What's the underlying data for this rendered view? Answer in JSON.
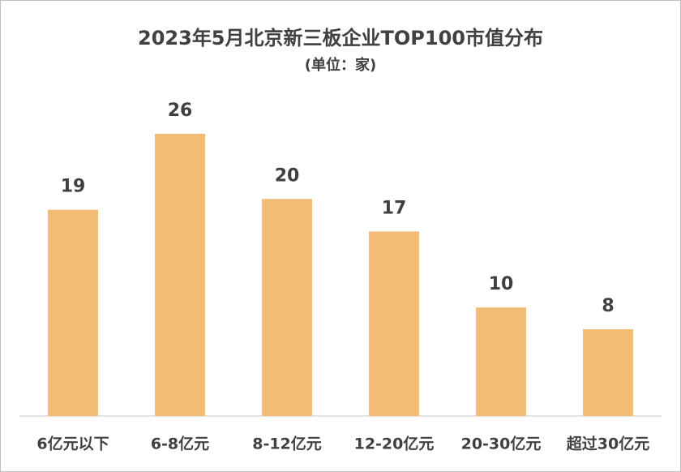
{
  "chart_data": {
    "type": "bar",
    "title": "2023年5月北京新三板企业TOP100市值分布",
    "subtitle": "(单位：家)",
    "categories": [
      "6亿元以下",
      "6-8亿元",
      "8-12亿元",
      "12-20亿元",
      "20-30亿元",
      "超过30亿元"
    ],
    "values": [
      19,
      26,
      20,
      17,
      10,
      8
    ],
    "color": "#f2bc74"
  }
}
